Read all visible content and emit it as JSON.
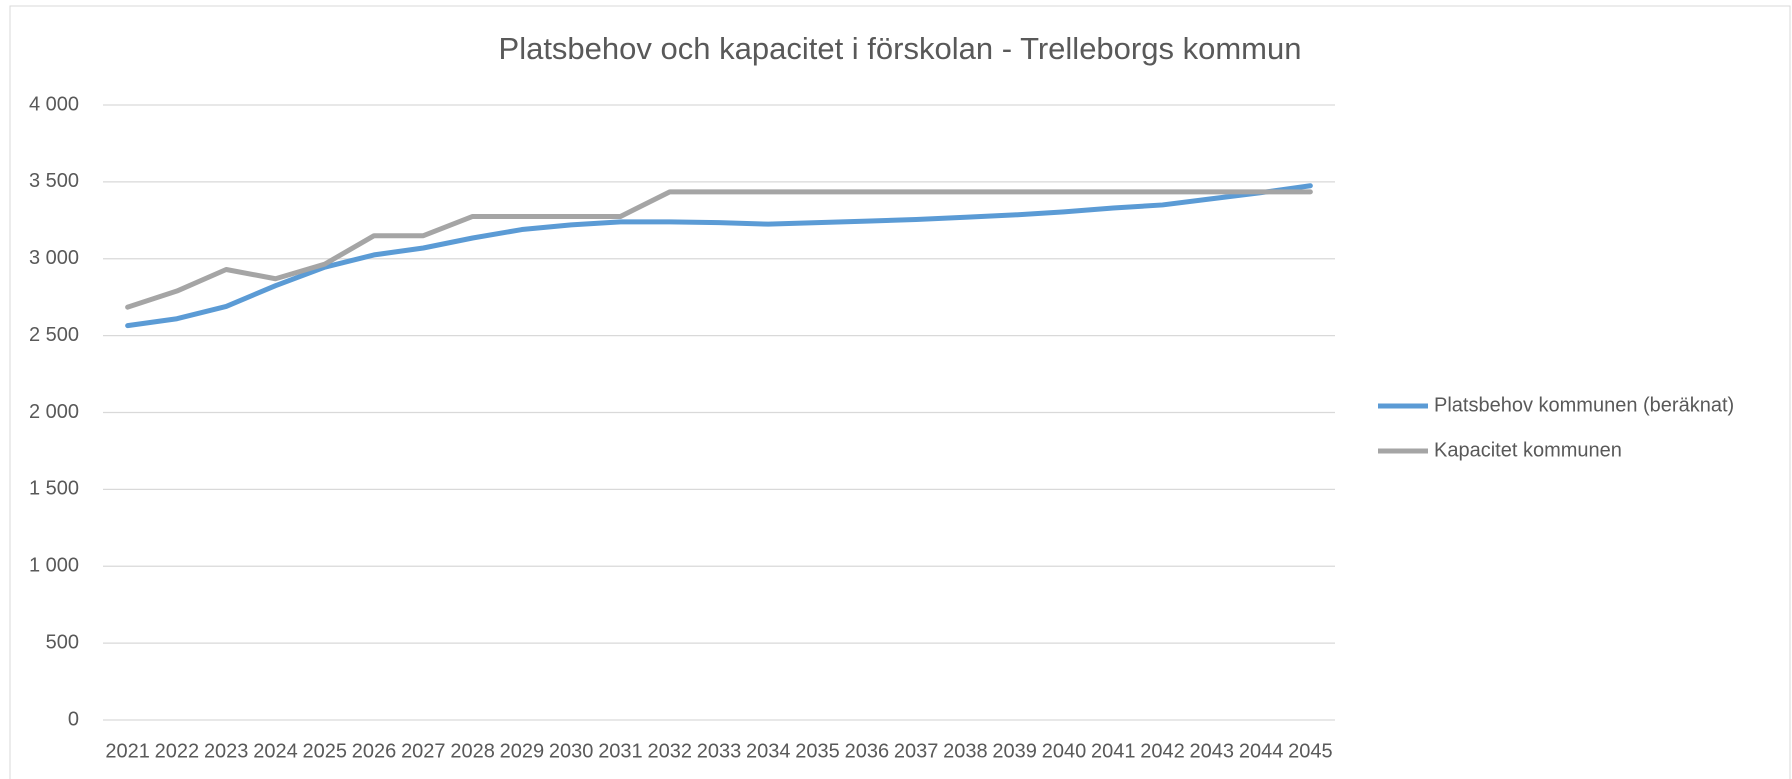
{
  "chart_data": {
    "type": "line",
    "title": "Platsbehov och kapacitet i förskolan - Trelleborgs kommun",
    "categories": [
      "2021",
      "2022",
      "2023",
      "2024",
      "2025",
      "2026",
      "2027",
      "2028",
      "2029",
      "2030",
      "2031",
      "2032",
      "2033",
      "2034",
      "2035",
      "2036",
      "2037",
      "2038",
      "2039",
      "2040",
      "2041",
      "2042",
      "2043",
      "2044",
      "2045"
    ],
    "series": [
      {
        "name": "Platsbehov kommunen (beräknat)",
        "color": "#5b9bd5",
        "values": [
          2565,
          2610,
          2690,
          2825,
          2945,
          3025,
          3070,
          3135,
          3190,
          3220,
          3240,
          3240,
          3235,
          3225,
          3235,
          3245,
          3255,
          3270,
          3285,
          3305,
          3330,
          3350,
          3390,
          3430,
          3475
        ]
      },
      {
        "name": "Kapacitet kommunen",
        "color": "#a5a5a5",
        "values": [
          2685,
          2790,
          2930,
          2870,
          2965,
          3150,
          3150,
          3275,
          3275,
          3275,
          3275,
          3435,
          3435,
          3435,
          3435,
          3435,
          3435,
          3435,
          3435,
          3435,
          3435,
          3435,
          3435,
          3435,
          3435
        ]
      }
    ],
    "ylim": [
      0,
      4000
    ],
    "yticks": [
      0,
      500,
      {
        "value": 1000,
        "label": "1 000"
      },
      {
        "value": 1500,
        "label": "1 500"
      },
      {
        "value": 2000,
        "label": "2 000"
      },
      {
        "value": 2500,
        "label": "2 500"
      },
      {
        "value": 3000,
        "label": "3 000"
      },
      {
        "value": 3500,
        "label": "3 500"
      },
      {
        "value": 4000,
        "label": "4 000"
      }
    ],
    "grid": true,
    "legend": "right"
  }
}
